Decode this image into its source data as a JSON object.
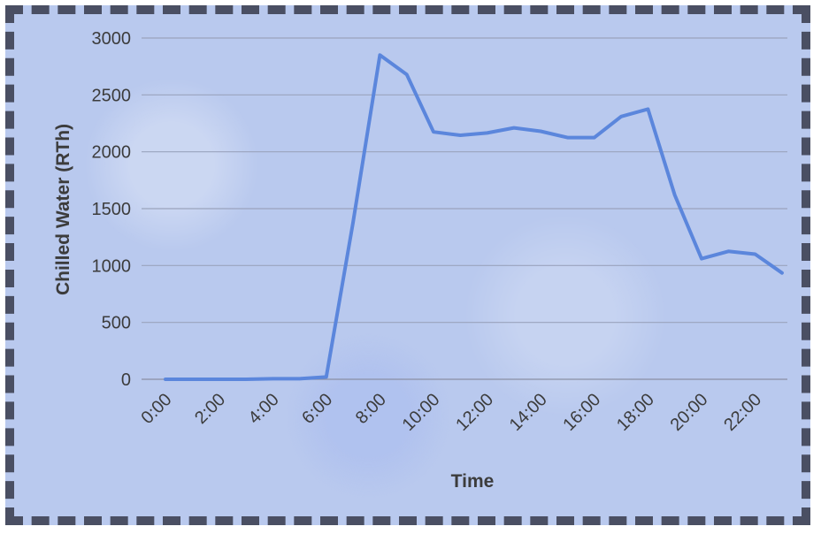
{
  "chart_data": {
    "type": "line",
    "title": "",
    "xlabel": "Time",
    "ylabel": "Chilled Water (RTh)",
    "ylim": [
      0,
      3000
    ],
    "yticks": [
      0,
      500,
      1000,
      1500,
      2000,
      2500,
      3000
    ],
    "x": [
      "0:00",
      "1:00",
      "2:00",
      "3:00",
      "4:00",
      "5:00",
      "6:00",
      "7:00",
      "8:00",
      "9:00",
      "10:00",
      "11:00",
      "12:00",
      "13:00",
      "14:00",
      "15:00",
      "16:00",
      "17:00",
      "18:00",
      "19:00",
      "20:00",
      "21:00",
      "22:00",
      "23:00"
    ],
    "xtick_labels": [
      "0:00",
      "2:00",
      "4:00",
      "6:00",
      "8:00",
      "10:00",
      "12:00",
      "14:00",
      "16:00",
      "18:00",
      "20:00",
      "22:00"
    ],
    "grid": true,
    "legend": "none",
    "series": [
      {
        "color": "#5b86dc",
        "values": [
          0,
          0,
          0,
          0,
          5,
          5,
          20,
          1380,
          2850,
          2680,
          2175,
          2145,
          2165,
          2210,
          2180,
          2125,
          2125,
          2310,
          2375,
          1620,
          1060,
          1125,
          1100,
          935
        ]
      }
    ]
  }
}
